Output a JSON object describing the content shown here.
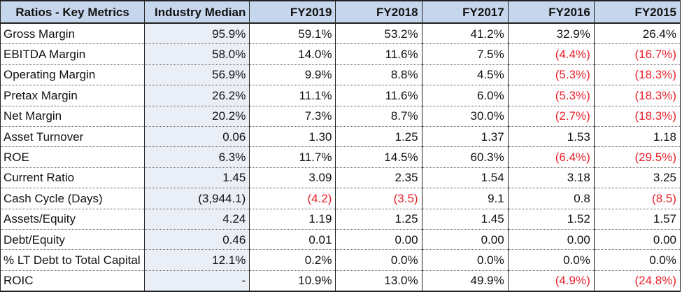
{
  "columns": [
    "Ratios - Key Metrics",
    "Industry Median",
    "FY2019",
    "FY2018",
    "FY2017",
    "FY2016",
    "FY2015"
  ],
  "negative_color": "#e8212a",
  "header_color": "#c6d6ec",
  "rows": [
    {
      "name": "Gross Margin",
      "values": [
        "95.9%",
        "59.1%",
        "53.2%",
        "41.2%",
        "32.9%",
        "26.4%"
      ]
    },
    {
      "name": "EBITDA Margin",
      "values": [
        "58.0%",
        "14.0%",
        "11.6%",
        "7.5%",
        "(4.4%)",
        "(16.7%)"
      ]
    },
    {
      "name": "Operating Margin",
      "values": [
        "56.9%",
        "9.9%",
        "8.8%",
        "4.5%",
        "(5.3%)",
        "(18.3%)"
      ]
    },
    {
      "name": "Pretax Margin",
      "values": [
        "26.2%",
        "11.1%",
        "11.6%",
        "6.0%",
        "(5.3%)",
        "(18.3%)"
      ]
    },
    {
      "name": "Net Margin",
      "values": [
        "20.2%",
        "7.3%",
        "8.7%",
        "30.0%",
        "(2.7%)",
        "(18.3%)"
      ]
    },
    {
      "name": "Asset Turnover",
      "values": [
        "0.06",
        "1.30",
        "1.25",
        "1.37",
        "1.53",
        "1.18"
      ]
    },
    {
      "name": "ROE",
      "values": [
        "6.3%",
        "11.7%",
        "14.5%",
        "60.3%",
        "(6.4%)",
        "(29.5%)"
      ]
    },
    {
      "name": "Current Ratio",
      "values": [
        "1.45",
        "3.09",
        "2.35",
        "1.54",
        "3.18",
        "3.25"
      ]
    },
    {
      "name": "Cash Cycle (Days)",
      "values": [
        "(3,944.1)",
        "(4.2)",
        "(3.5)",
        "9.1",
        "0.8",
        "(8.5)"
      ]
    },
    {
      "name": "Assets/Equity",
      "values": [
        "4.24",
        "1.19",
        "1.25",
        "1.45",
        "1.52",
        "1.57"
      ]
    },
    {
      "name": "Debt/Equity",
      "values": [
        "0.46",
        "0.01",
        "0.00",
        "0.00",
        "0.00",
        "0.00"
      ]
    },
    {
      "name": "% LT Debt to Total Capital",
      "values": [
        "12.1%",
        "0.2%",
        "0.0%",
        "0.0%",
        "0.0%",
        "0.0%"
      ]
    },
    {
      "name": "ROIC",
      "values": [
        "-",
        "10.9%",
        "13.0%",
        "49.9%",
        "(4.9%)",
        "(24.8%)"
      ]
    }
  ]
}
